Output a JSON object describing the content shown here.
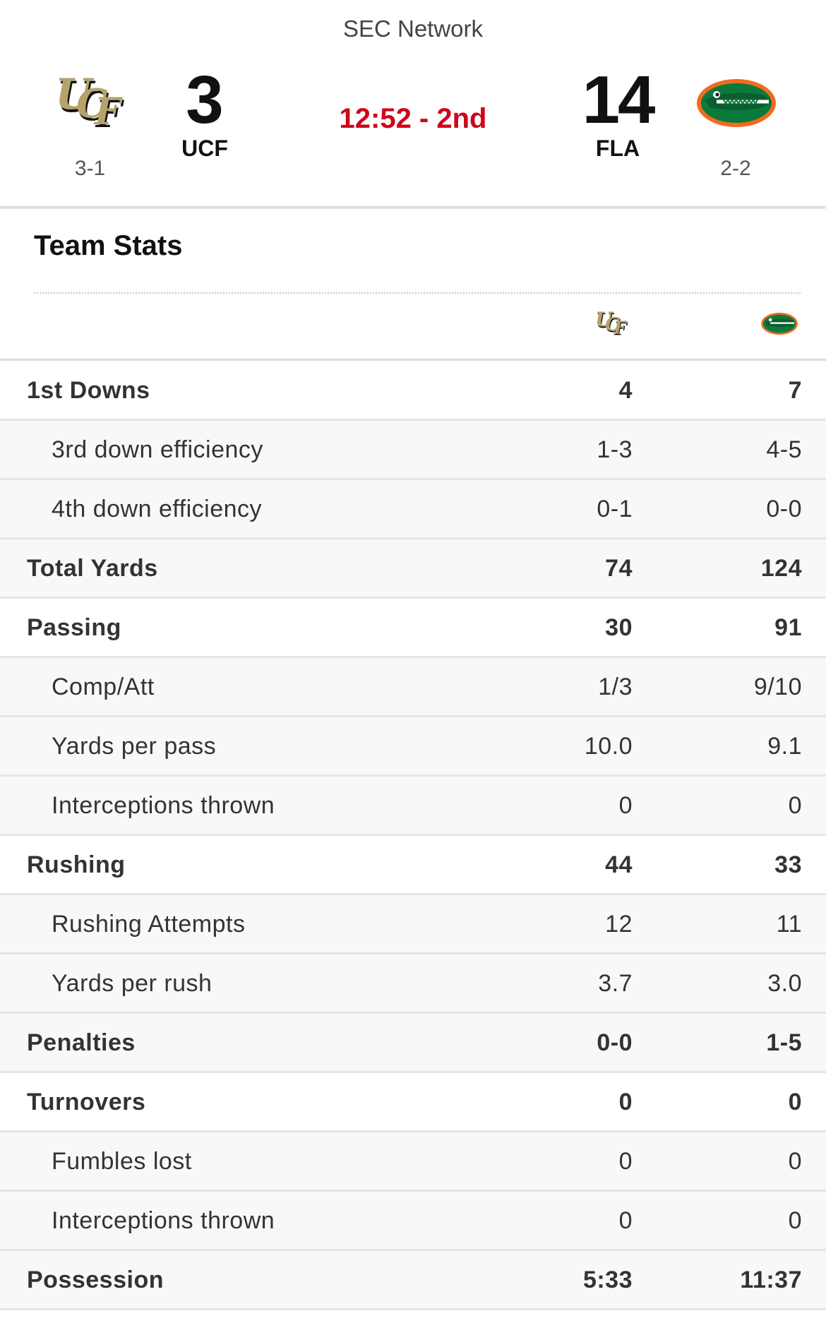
{
  "game": {
    "network": "SEC Network",
    "clock": "12:52 - 2nd",
    "away": {
      "abbr": "UCF",
      "score": "3",
      "record": "3-1",
      "logo": "ucf-logo"
    },
    "home": {
      "abbr": "FLA",
      "score": "14",
      "record": "2-2",
      "logo": "florida-gator-logo"
    }
  },
  "stats": {
    "title": "Team Stats",
    "rows": [
      {
        "label": "1st Downs",
        "away": "4",
        "home": "7",
        "type": "main"
      },
      {
        "label": "3rd down efficiency",
        "away": "1-3",
        "home": "4-5",
        "type": "sub"
      },
      {
        "label": "4th down efficiency",
        "away": "0-1",
        "home": "0-0",
        "type": "sub"
      },
      {
        "label": "Total Yards",
        "away": "74",
        "home": "124",
        "type": "main"
      },
      {
        "label": "Passing",
        "away": "30",
        "home": "91",
        "type": "main"
      },
      {
        "label": "Comp/Att",
        "away": "1/3",
        "home": "9/10",
        "type": "sub"
      },
      {
        "label": "Yards per pass",
        "away": "10.0",
        "home": "9.1",
        "type": "sub"
      },
      {
        "label": "Interceptions thrown",
        "away": "0",
        "home": "0",
        "type": "sub"
      },
      {
        "label": "Rushing",
        "away": "44",
        "home": "33",
        "type": "main"
      },
      {
        "label": "Rushing Attempts",
        "away": "12",
        "home": "11",
        "type": "sub"
      },
      {
        "label": "Yards per rush",
        "away": "3.7",
        "home": "3.0",
        "type": "sub"
      },
      {
        "label": "Penalties",
        "away": "0-0",
        "home": "1-5",
        "type": "main"
      },
      {
        "label": "Turnovers",
        "away": "0",
        "home": "0",
        "type": "main"
      },
      {
        "label": "Fumbles lost",
        "away": "0",
        "home": "0",
        "type": "sub"
      },
      {
        "label": "Interceptions thrown",
        "away": "0",
        "home": "0",
        "type": "sub"
      },
      {
        "label": "Possession",
        "away": "5:33",
        "home": "11:37",
        "type": "main"
      }
    ]
  },
  "colors": {
    "clock": "#d0021b",
    "ucf_gold": "#b5a36a",
    "gator_green": "#0a7a3c",
    "gator_orange": "#f26a21"
  }
}
